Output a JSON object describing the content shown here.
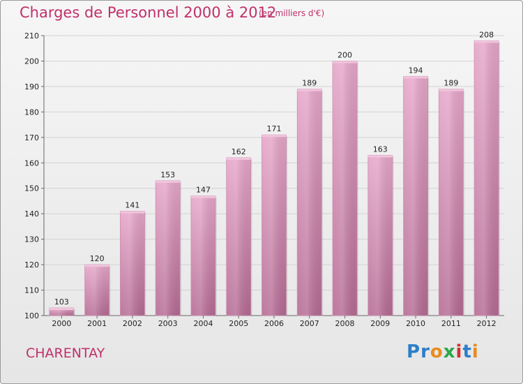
{
  "title": "Charges de Personnel 2000 à 2012",
  "subtitle": "(en milliers d'€)",
  "town": "CHARENTAY",
  "logo": {
    "letters": [
      "P",
      "r",
      "o",
      "x",
      "i",
      "t",
      "i"
    ],
    "colors": [
      "#2d7fc8",
      "#2d7fc8",
      "#e98b1f",
      "#2aa84a",
      "#d62f2f",
      "#2d7fc8",
      "#e98b1f"
    ]
  },
  "colors": {
    "title": "#c0306a",
    "bar": "#d98bb6",
    "bar_dark": "#b8648f"
  },
  "chart_data": {
    "type": "bar",
    "title": "Charges de Personnel 2000 à 2012",
    "categories": [
      "2000",
      "2001",
      "2002",
      "2003",
      "2004",
      "2005",
      "2006",
      "2007",
      "2008",
      "2009",
      "2010",
      "2011",
      "2012"
    ],
    "values": [
      103,
      120,
      141,
      153,
      147,
      162,
      171,
      189,
      200,
      163,
      194,
      189,
      208
    ],
    "ylim": [
      100,
      210
    ],
    "yticks": [
      100,
      110,
      120,
      130,
      140,
      150,
      160,
      170,
      180,
      190,
      200,
      210
    ],
    "grid": true
  }
}
